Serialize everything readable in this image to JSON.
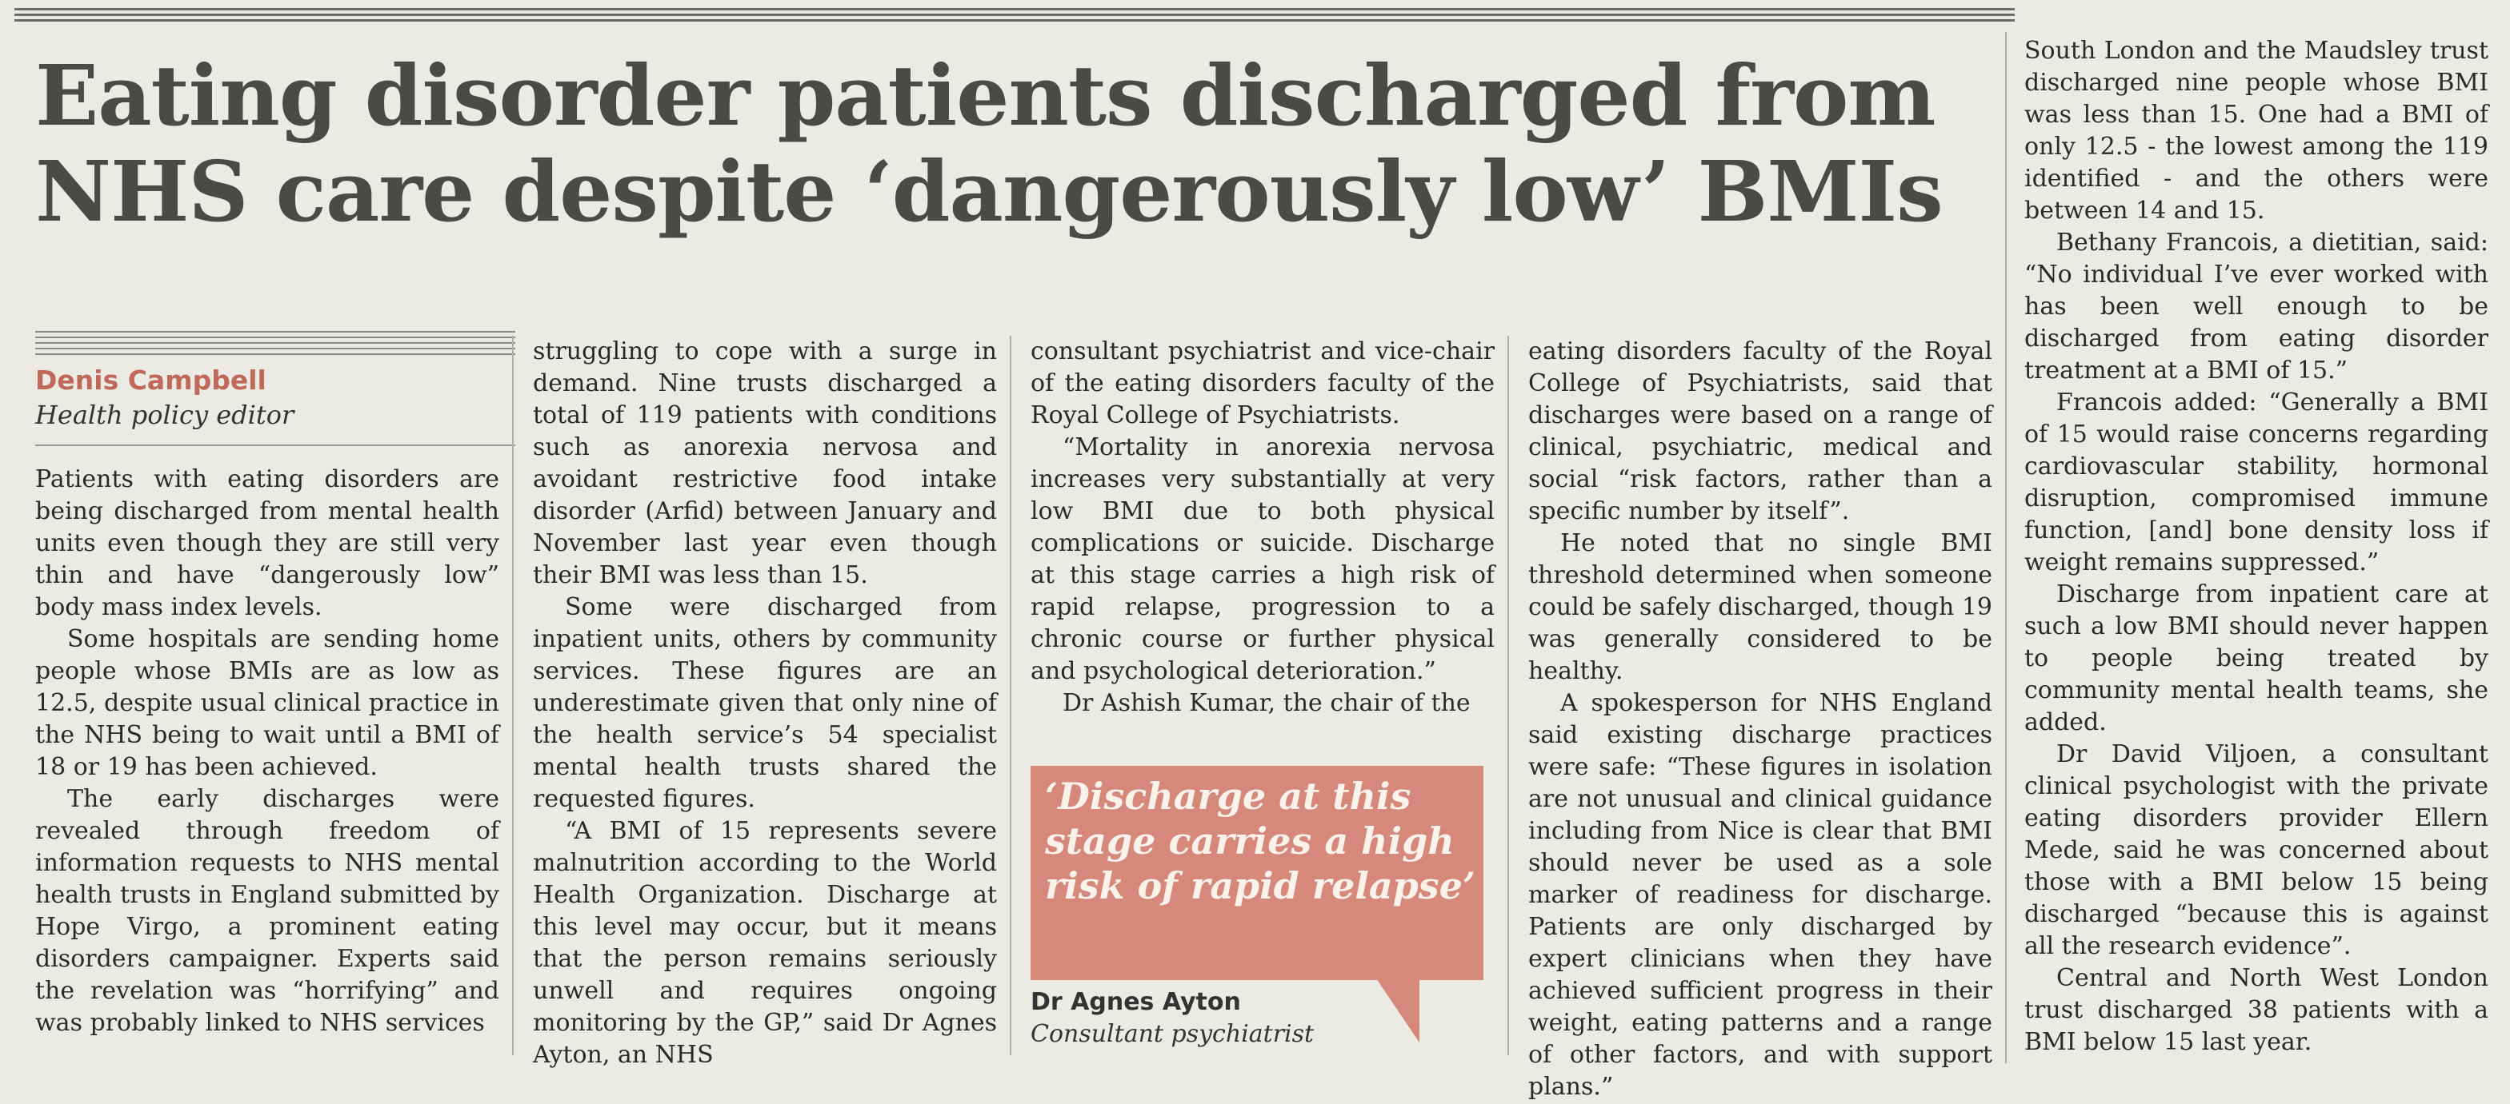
{
  "headline": {
    "line1": "Eating disorder patients discharged from",
    "line2": "NHS care despite ‘dangerously low’ BMIs"
  },
  "byline": {
    "author": "Denis Campbell",
    "role": "Health policy editor"
  },
  "columns": {
    "col1": [
      "Patients with eating disorders are being discharged from mental health units even though they are still very thin and have “dangerously low” body mass index levels.",
      "Some hospitals are sending home people whose BMIs are as low as 12.5, despite usual clinical practice in the NHS being to wait until a BMI of 18 or 19 has been achieved.",
      "The early discharges were revealed through freedom of information requests to NHS mental health trusts in England submitted by Hope Virgo, a prominent eating disorders campaigner. Experts said the revelation was “horrifying” and was probably linked to NHS services"
    ],
    "col2": [
      "struggling to cope with a surge in demand. Nine trusts discharged a total of 119 patients with conditions such as anorexia nervosa and avoidant restrictive food intake disorder (Arfid) between January and November last year even though their BMI was less than 15.",
      "Some were discharged from inpatient units, others by community services. These figures are an underestimate given that only nine of the health service’s 54 specialist mental health trusts shared the requested figures.",
      "“A BMI of 15 represents severe malnutrition according to the World Health Organization. Discharge at this level may occur, but it means that the person remains seriously unwell and requires ongoing monitoring by the GP,” said Dr Agnes Ayton, an NHS"
    ],
    "col3": [
      "consultant psychiatrist and vice-chair of the eating disorders faculty of the Royal College of Psychiatrists.",
      "“Mortality in anorexia nervosa increases very substantially at very low BMI due to both physical complications or suicide. Discharge at this stage carries a high risk of rapid relapse, progression to a chronic course or further physical and psychological deterioration.”",
      "Dr Ashish Kumar, the chair of the"
    ],
    "col4": [
      "eating disorders faculty of the Royal College of Psychiatrists, said that discharges were based on a range of clinical, psychiatric, medical and social “risk factors, rather than a specific number by itself”.",
      "He noted that no single BMI threshold determined when someone could be safely discharged, though 19 was generally considered to be healthy.",
      "A spokesperson for NHS England said existing discharge practices were safe: “These figures in isolation are not unusual and clinical guidance including from Nice is clear that BMI should never be used as a sole marker of readiness for discharge. Patients are only discharged by expert clinicians when they have achieved sufficient progress in their weight, eating patterns and a range of other factors, and with support plans.”"
    ],
    "col5": [
      "South London and the Maudsley trust discharged nine people whose BMI was less than 15. One had a BMI of only 12.5 - the lowest among the 119 identified - and the others were between 14 and 15.",
      "Bethany Francois, a dietitian, said: “No individual I’ve ever worked with has been well enough to be discharged from eating disorder treatment at a BMI of 15.”",
      "Francois added: “Generally a BMI of 15 would raise concerns regarding cardiovascular stability, hormonal disruption, compromised immune function, [and] bone density loss if weight remains suppressed.”",
      "Discharge from inpatient care at such a low BMI should never happen to people being treated by community mental health teams, she added.",
      "Dr David Viljoen, a consultant clinical psychologist with the private eating disorders provider Ellern Mede, said he was concerned about those with a BMI below 15 being discharged “because this is against all the research evidence”.",
      "Central and North West London trust discharged 38 patients with a BMI below 15 last year."
    ]
  },
  "pullquote": {
    "text": "‘Discharge at this stage carries a high risk of rapid relapse’",
    "author": "Dr Agnes Ayton",
    "role": "Consultant psychiatrist",
    "color": "#d6887a"
  }
}
